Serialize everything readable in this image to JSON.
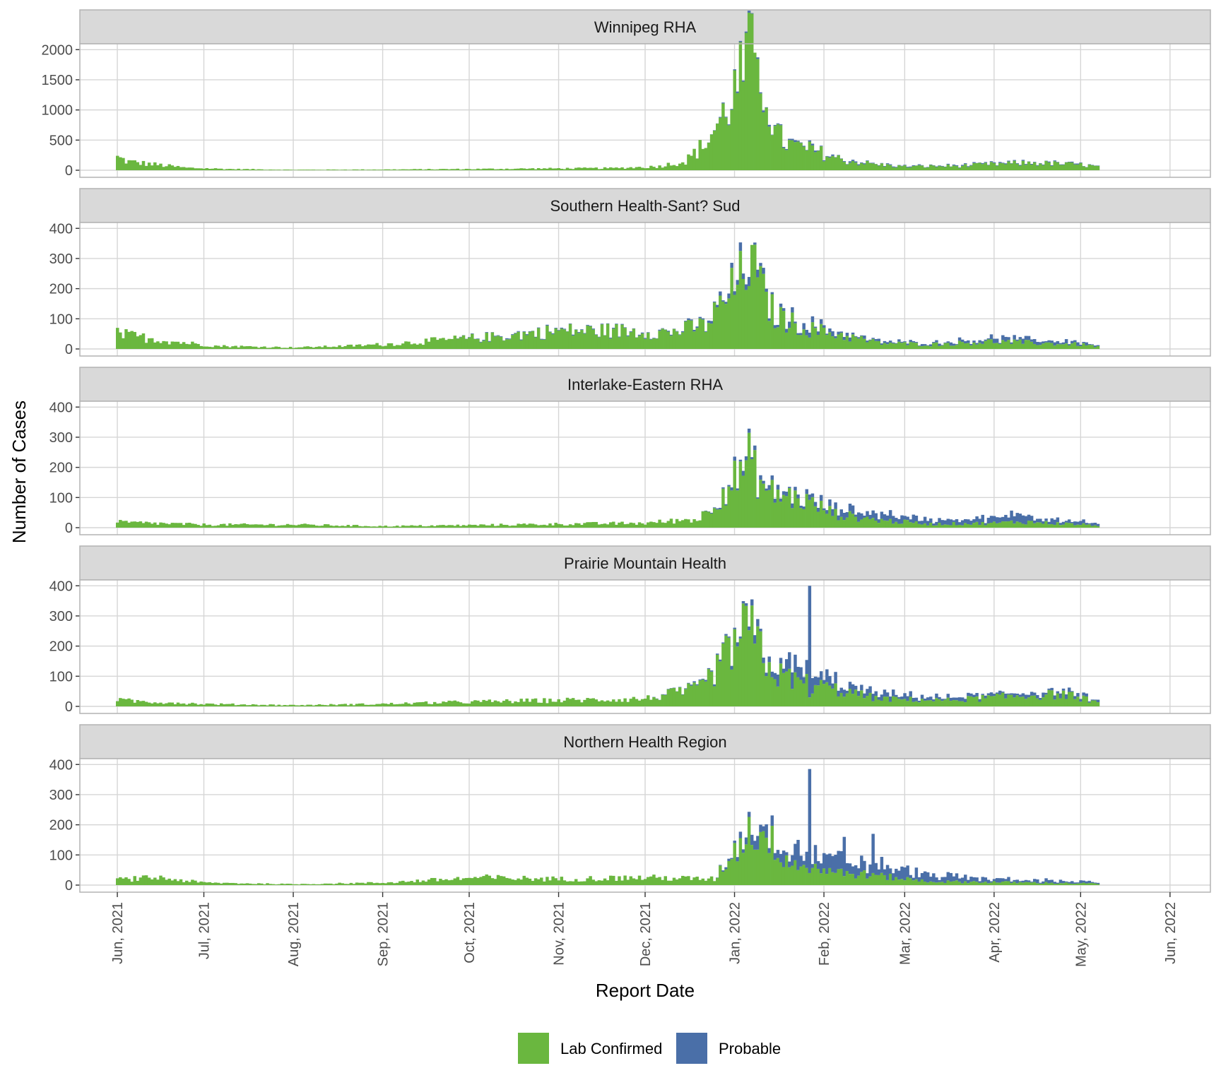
{
  "chart_data": {
    "type": "bar",
    "stacked": true,
    "x_axis": {
      "label": "Report Date",
      "ticks": [
        "Jun, 2021",
        "Jul, 2021",
        "Aug, 2021",
        "Sep, 2021",
        "Oct, 2021",
        "Nov, 2021",
        "Dec, 2021",
        "Jan, 2022",
        "Feb, 2022",
        "Mar, 2022",
        "Apr, 2022",
        "May, 2022",
        "Jun, 2022"
      ],
      "range": [
        "2021-05-19",
        "2022-06-15"
      ]
    },
    "y_axis_label": "Number of Cases",
    "grid": true,
    "legend": {
      "position": "bottom",
      "entries": [
        {
          "name": "Lab Confirmed",
          "color": "#6ab73f"
        },
        {
          "name": "Probable",
          "color": "#4a6fa8"
        }
      ]
    },
    "colors": {
      "lab_confirmed": "#6ab73f",
      "probable": "#4a6fa8",
      "strip": "#d9d9d9",
      "panel_border": "#b3b3b3",
      "grid": "#d6d6d6"
    },
    "series_keys": {
      "lab_confirmed": "Lab Confirmed",
      "probable": "Probable"
    },
    "panels": [
      {
        "title": "Winnipeg RHA",
        "ylim": [
          0,
          2050
        ],
        "yticks": [
          0,
          500,
          1000,
          1500,
          2000
        ],
        "profile": [
          {
            "date": "2021-06-01",
            "lab": 210,
            "prob": 0
          },
          {
            "date": "2021-06-05",
            "lab": 140,
            "prob": 0
          },
          {
            "date": "2021-06-15",
            "lab": 90,
            "prob": 0
          },
          {
            "date": "2021-06-25",
            "lab": 40,
            "prob": 0
          },
          {
            "date": "2021-07-10",
            "lab": 20,
            "prob": 0
          },
          {
            "date": "2021-08-01",
            "lab": 8,
            "prob": 0
          },
          {
            "date": "2021-09-01",
            "lab": 12,
            "prob": 0
          },
          {
            "date": "2021-10-01",
            "lab": 20,
            "prob": 0
          },
          {
            "date": "2021-11-01",
            "lab": 30,
            "prob": 0
          },
          {
            "date": "2021-11-20",
            "lab": 35,
            "prob": 0
          },
          {
            "date": "2021-12-05",
            "lab": 60,
            "prob": 0
          },
          {
            "date": "2021-12-15",
            "lab": 150,
            "prob": 0
          },
          {
            "date": "2021-12-22",
            "lab": 450,
            "prob": 0
          },
          {
            "date": "2021-12-28",
            "lab": 900,
            "prob": 10
          },
          {
            "date": "2022-01-03",
            "lab": 1500,
            "prob": 20
          },
          {
            "date": "2022-01-06",
            "lab": 1900,
            "prob": 20
          },
          {
            "date": "2022-01-09",
            "lab": 1700,
            "prob": 20
          },
          {
            "date": "2022-01-12",
            "lab": 1300,
            "prob": 20
          },
          {
            "date": "2022-01-15",
            "lab": 600,
            "prob": 20
          },
          {
            "date": "2022-01-20",
            "lab": 420,
            "prob": 20
          },
          {
            "date": "2022-01-30",
            "lab": 300,
            "prob": 20
          },
          {
            "date": "2022-02-08",
            "lab": 160,
            "prob": 15
          },
          {
            "date": "2022-02-20",
            "lab": 90,
            "prob": 10
          },
          {
            "date": "2022-03-01",
            "lab": 60,
            "prob": 8
          },
          {
            "date": "2022-03-20",
            "lab": 70,
            "prob": 10
          },
          {
            "date": "2022-04-01",
            "lab": 100,
            "prob": 10
          },
          {
            "date": "2022-04-15",
            "lab": 120,
            "prob": 10
          },
          {
            "date": "2022-05-01",
            "lab": 90,
            "prob": 10
          },
          {
            "date": "2022-05-07",
            "lab": 60,
            "prob": 5
          }
        ]
      },
      {
        "title": "Southern Health-Sant? Sud",
        "ylim": [
          0,
          410
        ],
        "yticks": [
          0,
          100,
          200,
          300,
          400
        ],
        "profile": [
          {
            "date": "2021-06-01",
            "lab": 50,
            "prob": 0
          },
          {
            "date": "2021-06-20",
            "lab": 25,
            "prob": 0
          },
          {
            "date": "2021-07-05",
            "lab": 10,
            "prob": 0
          },
          {
            "date": "2021-08-01",
            "lab": 5,
            "prob": 0
          },
          {
            "date": "2021-08-20",
            "lab": 10,
            "prob": 0
          },
          {
            "date": "2021-09-01",
            "lab": 15,
            "prob": 0
          },
          {
            "date": "2021-09-20",
            "lab": 28,
            "prob": 0
          },
          {
            "date": "2021-10-10",
            "lab": 40,
            "prob": 2
          },
          {
            "date": "2021-11-01",
            "lab": 60,
            "prob": 2
          },
          {
            "date": "2021-11-20",
            "lab": 60,
            "prob": 2
          },
          {
            "date": "2021-12-10",
            "lab": 55,
            "prob": 2
          },
          {
            "date": "2021-12-22",
            "lab": 80,
            "prob": 5
          },
          {
            "date": "2021-12-28",
            "lab": 150,
            "prob": 10
          },
          {
            "date": "2022-01-03",
            "lab": 230,
            "prob": 20
          },
          {
            "date": "2022-01-06",
            "lab": 300,
            "prob": 20
          },
          {
            "date": "2022-01-10",
            "lab": 200,
            "prob": 15
          },
          {
            "date": "2022-01-15",
            "lab": 110,
            "prob": 10
          },
          {
            "date": "2022-01-25",
            "lab": 70,
            "prob": 15
          },
          {
            "date": "2022-02-05",
            "lab": 50,
            "prob": 10
          },
          {
            "date": "2022-02-20",
            "lab": 20,
            "prob": 5
          },
          {
            "date": "2022-03-10",
            "lab": 15,
            "prob": 5
          },
          {
            "date": "2022-04-01",
            "lab": 25,
            "prob": 10
          },
          {
            "date": "2022-04-15",
            "lab": 20,
            "prob": 10
          },
          {
            "date": "2022-05-01",
            "lab": 15,
            "prob": 8
          },
          {
            "date": "2022-05-07",
            "lab": 8,
            "prob": 4
          }
        ]
      },
      {
        "title": "Interlake-Eastern RHA",
        "ylim": [
          0,
          410
        ],
        "yticks": [
          0,
          100,
          200,
          300,
          400
        ],
        "profile": [
          {
            "date": "2021-06-01",
            "lab": 18,
            "prob": 0
          },
          {
            "date": "2021-07-01",
            "lab": 10,
            "prob": 0
          },
          {
            "date": "2021-08-01",
            "lab": 10,
            "prob": 0
          },
          {
            "date": "2021-09-01",
            "lab": 5,
            "prob": 0
          },
          {
            "date": "2021-10-01",
            "lab": 8,
            "prob": 0
          },
          {
            "date": "2021-11-01",
            "lab": 12,
            "prob": 0
          },
          {
            "date": "2021-12-01",
            "lab": 15,
            "prob": 0
          },
          {
            "date": "2021-12-20",
            "lab": 30,
            "prob": 0
          },
          {
            "date": "2021-12-28",
            "lab": 120,
            "prob": 5
          },
          {
            "date": "2022-01-03",
            "lab": 180,
            "prob": 10
          },
          {
            "date": "2022-01-06",
            "lab": 220,
            "prob": 10
          },
          {
            "date": "2022-01-12",
            "lab": 120,
            "prob": 10
          },
          {
            "date": "2022-01-25",
            "lab": 90,
            "prob": 12
          },
          {
            "date": "2022-02-05",
            "lab": 45,
            "prob": 15
          },
          {
            "date": "2022-02-20",
            "lab": 25,
            "prob": 25
          },
          {
            "date": "2022-03-10",
            "lab": 12,
            "prob": 12
          },
          {
            "date": "2022-04-01",
            "lab": 15,
            "prob": 15
          },
          {
            "date": "2022-04-10",
            "lab": 20,
            "prob": 25
          },
          {
            "date": "2022-05-07",
            "lab": 8,
            "prob": 5
          }
        ]
      },
      {
        "title": "Prairie Mountain Health",
        "ylim": [
          0,
          410
        ],
        "yticks": [
          0,
          100,
          200,
          300,
          400
        ],
        "profile": [
          {
            "date": "2021-06-01",
            "lab": 20,
            "prob": 0
          },
          {
            "date": "2021-07-01",
            "lab": 8,
            "prob": 0
          },
          {
            "date": "2021-08-01",
            "lab": 4,
            "prob": 0
          },
          {
            "date": "2021-09-01",
            "lab": 8,
            "prob": 0
          },
          {
            "date": "2021-10-01",
            "lab": 15,
            "prob": 0
          },
          {
            "date": "2021-11-01",
            "lab": 20,
            "prob": 0
          },
          {
            "date": "2021-12-01",
            "lab": 25,
            "prob": 0
          },
          {
            "date": "2021-12-20",
            "lab": 60,
            "prob": 3
          },
          {
            "date": "2021-12-28",
            "lab": 150,
            "prob": 5
          },
          {
            "date": "2022-01-04",
            "lab": 250,
            "prob": 15
          },
          {
            "date": "2022-01-08",
            "lab": 230,
            "prob": 20
          },
          {
            "date": "2022-01-14",
            "lab": 110,
            "prob": 30
          },
          {
            "date": "2022-01-25",
            "lab": 80,
            "prob": 40
          },
          {
            "date": "2022-02-08",
            "lab": 50,
            "prob": 20
          },
          {
            "date": "2022-02-20",
            "lab": 25,
            "prob": 15
          },
          {
            "date": "2022-03-15",
            "lab": 20,
            "prob": 8
          },
          {
            "date": "2022-04-10",
            "lab": 35,
            "prob": 10
          },
          {
            "date": "2022-04-25",
            "lab": 40,
            "prob": 10
          },
          {
            "date": "2022-05-07",
            "lab": 15,
            "prob": 5
          }
        ]
      },
      {
        "title": "Northern Health Region",
        "ylim": [
          0,
          410
        ],
        "yticks": [
          0,
          100,
          200,
          300,
          400
        ],
        "profile": [
          {
            "date": "2021-06-01",
            "lab": 18,
            "prob": 0
          },
          {
            "date": "2021-06-15",
            "lab": 25,
            "prob": 0
          },
          {
            "date": "2021-07-01",
            "lab": 8,
            "prob": 0
          },
          {
            "date": "2021-08-01",
            "lab": 3,
            "prob": 0
          },
          {
            "date": "2021-09-01",
            "lab": 8,
            "prob": 0
          },
          {
            "date": "2021-10-05",
            "lab": 25,
            "prob": 0
          },
          {
            "date": "2021-11-01",
            "lab": 20,
            "prob": 0
          },
          {
            "date": "2021-12-01",
            "lab": 25,
            "prob": 0
          },
          {
            "date": "2021-12-25",
            "lab": 20,
            "prob": 0
          },
          {
            "date": "2021-12-30",
            "lab": 90,
            "prob": 5
          },
          {
            "date": "2022-01-05",
            "lab": 170,
            "prob": 20
          },
          {
            "date": "2022-01-10",
            "lab": 180,
            "prob": 30
          },
          {
            "date": "2022-01-20",
            "lab": 80,
            "prob": 35
          },
          {
            "date": "2022-02-05",
            "lab": 45,
            "prob": 40
          },
          {
            "date": "2022-02-20",
            "lab": 30,
            "prob": 35
          },
          {
            "date": "2022-03-10",
            "lab": 12,
            "prob": 20
          },
          {
            "date": "2022-04-01",
            "lab": 10,
            "prob": 10
          },
          {
            "date": "2022-05-07",
            "lab": 5,
            "prob": 5
          }
        ],
        "spikes": [
          {
            "date": "2022-01-27",
            "lab": 40,
            "prob": 345
          },
          {
            "date": "2022-01-23",
            "lab": 50,
            "prob": 100
          },
          {
            "date": "2022-02-08",
            "lab": 30,
            "prob": 130
          },
          {
            "date": "2022-02-18",
            "lab": 40,
            "prob": 130
          }
        ]
      }
    ],
    "extra_spikes": [
      {
        "panel": 3,
        "date": "2022-01-27",
        "lab": 30,
        "prob": 370
      },
      {
        "panel": 0,
        "date": "2022-01-08",
        "lab": 1950,
        "prob": 0
      },
      {
        "panel": 1,
        "date": "2022-01-07",
        "lab": 345,
        "prob": 0
      }
    ]
  }
}
